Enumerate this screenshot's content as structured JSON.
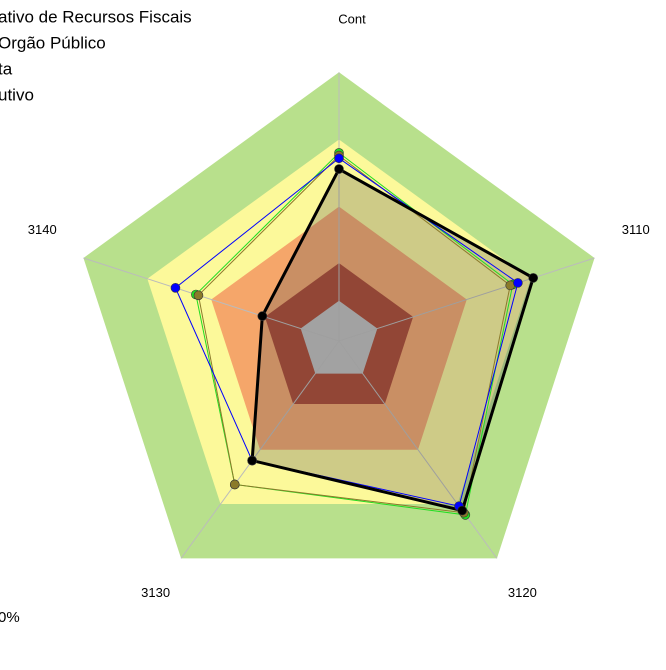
{
  "chart_data": {
    "type": "radar",
    "categories": [
      "Cont",
      "3110",
      "3120",
      "3130",
      "3140"
    ],
    "rlim": [
      0,
      100
    ],
    "bands": [
      {
        "value": 100,
        "color": "#b8e08c"
      },
      {
        "value": 75,
        "color": "#fcf99a"
      },
      {
        "value": 50,
        "color": "#f5a66a"
      },
      {
        "value": 29,
        "color": "#a9412a"
      },
      {
        "value": 15,
        "color": "#c0c0c0"
      }
    ],
    "series": [
      {
        "name": "ativo de Recursos Fiscais",
        "color": "#000000",
        "values": [
          64,
          76,
          78,
          55,
          30
        ]
      },
      {
        "name": "Orgão Público",
        "color": "#22dd22",
        "values": [
          70,
          68,
          80,
          66,
          56
        ]
      },
      {
        "name": "ta",
        "color": "#0000ff",
        "values": [
          68,
          70,
          76,
          55,
          64
        ]
      },
      {
        "name": "utivo",
        "color": "#8b7a2a",
        "values": [
          69,
          67,
          79,
          66,
          55
        ]
      }
    ],
    "note": "0%"
  }
}
